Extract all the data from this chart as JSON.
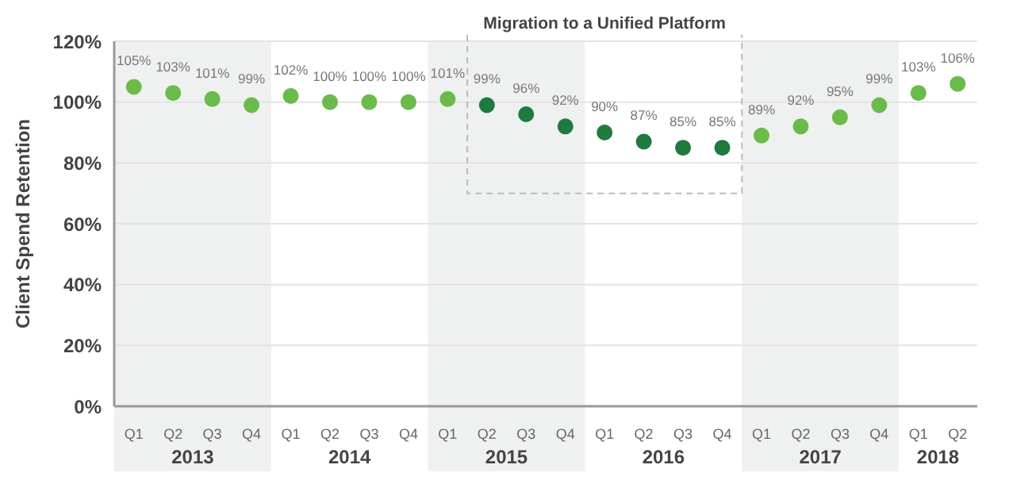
{
  "chart_data": {
    "type": "scatter",
    "ylabel": "Client Spend Retention",
    "categories": [
      "Q1",
      "Q2",
      "Q3",
      "Q4",
      "Q1",
      "Q2",
      "Q3",
      "Q4",
      "Q1",
      "Q2",
      "Q3",
      "Q4",
      "Q1",
      "Q2",
      "Q3",
      "Q4",
      "Q1",
      "Q2",
      "Q3",
      "Q4",
      "Q1",
      "Q2"
    ],
    "values": [
      105,
      103,
      101,
      99,
      102,
      100,
      100,
      100,
      101,
      99,
      96,
      92,
      90,
      87,
      85,
      85,
      89,
      92,
      95,
      99,
      103,
      106
    ],
    "value_labels": [
      "105%",
      "103%",
      "101%",
      "99%",
      "102%",
      "100%",
      "100%",
      "100%",
      "101%",
      "99%",
      "96%",
      "92%",
      "90%",
      "87%",
      "85%",
      "85%",
      "89%",
      "92%",
      "95%",
      "99%",
      "103%",
      "106%"
    ],
    "colors": [
      "#6abb4a",
      "#6abb4a",
      "#6abb4a",
      "#6abb4a",
      "#6abb4a",
      "#6abb4a",
      "#6abb4a",
      "#6abb4a",
      "#6abb4a",
      "#1e7a3e",
      "#1e7a3e",
      "#1e7a3e",
      "#1e7a3e",
      "#1e7a3e",
      "#1e7a3e",
      "#1e7a3e",
      "#6abb4a",
      "#6abb4a",
      "#6abb4a",
      "#6abb4a",
      "#6abb4a",
      "#6abb4a"
    ],
    "ylim": [
      0,
      120
    ],
    "yticks": [
      {
        "value": 0,
        "label": "0%"
      },
      {
        "value": 20,
        "label": "20%"
      },
      {
        "value": 40,
        "label": "40%"
      },
      {
        "value": 60,
        "label": "60%"
      },
      {
        "value": 80,
        "label": "80%"
      },
      {
        "value": 100,
        "label": "100%"
      },
      {
        "value": 120,
        "label": "120%"
      }
    ],
    "annotations": [
      "Migration to a Unified Platform",
      "2013",
      "2014",
      "2015",
      "2016",
      "2017",
      "2018"
    ],
    "grid": "y",
    "marker": "circle"
  }
}
